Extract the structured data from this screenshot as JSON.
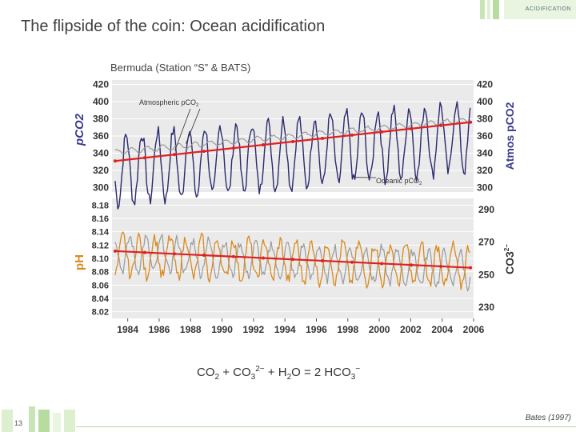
{
  "header": {
    "corner_label": "ACIDIFICATION"
  },
  "title": "The flipside of the coin: Ocean acidification",
  "equation": {
    "co2": "CO",
    "co2_sub": "2",
    "plus1": " + CO",
    "co3_sub": "3",
    "co3_sup": "2−",
    "plus2": " + H",
    "h2o_sub": "2",
    "o_eq": "O = 2 HCO",
    "hco3_sub": "3",
    "hco3_sup": "−"
  },
  "footer": {
    "page_number": "13",
    "citation": "Bates (1997)"
  },
  "colors": {
    "ocean_pco2": "#2b2a6e",
    "atmos_pco2": "#9a9a9a",
    "trend": "#e02020",
    "ph": "#9a9a9a",
    "co3": "#d98a1e",
    "ph_label": "#d98a1e",
    "pco2_label": "#3b3b8f",
    "panel_bg": "#eaeaea"
  },
  "chart_data": [
    {
      "type": "line",
      "title": "Bermuda (Station “S” & BATS)",
      "xlim": [
        1983,
        2006
      ],
      "ylabel": "pCO2",
      "y2label": "Atmos pCO2",
      "ylim": [
        295,
        425
      ],
      "yticks": [
        300,
        320,
        340,
        360,
        380,
        400,
        420
      ],
      "y2ticks": [
        300,
        320,
        340,
        360,
        380,
        400,
        420
      ],
      "annotations": [
        {
          "text": "Atmospheric pCO",
          "sub": "2",
          "x": 1987.0,
          "y": 343
        },
        {
          "text": "Oceanic pCO",
          "sub": "2",
          "x": 1998.5,
          "y": 312
        }
      ],
      "series": [
        {
          "name": "Oceanic pCO2",
          "role": "oceanic",
          "mean_start": 320,
          "mean_end": 360,
          "amplitude": 40,
          "noise": 8
        },
        {
          "name": "Atmospheric pCO2",
          "role": "atmospheric",
          "mean_start": 341,
          "mean_end": 379,
          "amplitude": 3,
          "noise": 1
        },
        {
          "name": "Trend",
          "role": "trend",
          "x": [
            1983.2,
            2005.8
          ],
          "y": [
            331,
            376
          ]
        }
      ]
    },
    {
      "type": "line",
      "xlabel": "",
      "xlim": [
        1983,
        2006
      ],
      "xticks": [
        1984,
        1986,
        1988,
        1990,
        1992,
        1994,
        1996,
        1998,
        2000,
        2002,
        2004,
        2006
      ],
      "ylabel": "pH",
      "y2label": "CO3",
      "y2label_sup": "2−",
      "ylim": [
        8.01,
        8.19
      ],
      "y2lim": [
        223,
        297
      ],
      "yticks": [
        8.02,
        8.04,
        8.06,
        8.08,
        8.1,
        8.12,
        8.14,
        8.16,
        8.18
      ],
      "y2ticks": [
        230,
        250,
        270,
        290
      ],
      "series": [
        {
          "name": "pH",
          "role": "ph",
          "mean_start": 8.108,
          "mean_end": 8.083,
          "amplitude": 0.025,
          "noise": 0.008
        },
        {
          "name": "CO3 2-",
          "role": "co3",
          "mean_start": 262,
          "mean_end": 255,
          "amplitude": 12,
          "noise": 4
        },
        {
          "name": "Trend",
          "role": "trend",
          "x": [
            1983.2,
            2005.8
          ],
          "y": [
            8.111,
            8.086
          ]
        }
      ]
    }
  ]
}
